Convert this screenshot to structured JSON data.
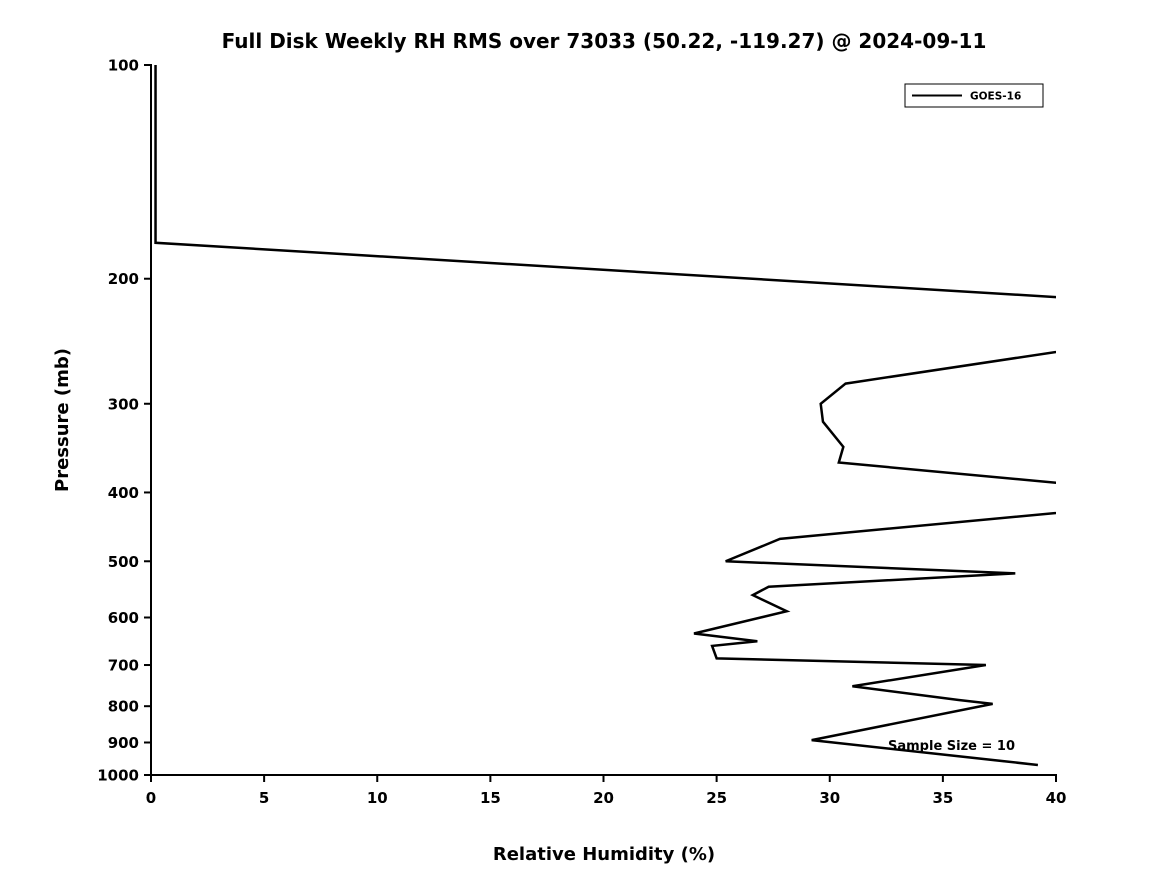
{
  "chart_data": {
    "type": "line",
    "title": "Full Disk Weekly RH RMS over 73033 (50.22, -119.27) @ 2024-09-11",
    "xlabel": "Relative Humidity (%)",
    "ylabel": "Pressure (mb)",
    "xlim": [
      0,
      40
    ],
    "ylim": [
      1000,
      100
    ],
    "y_scale": "log",
    "x_ticks": [
      0,
      5,
      10,
      15,
      20,
      25,
      30,
      35,
      40
    ],
    "y_ticks": [
      100,
      200,
      300,
      400,
      500,
      600,
      700,
      800,
      900,
      1000
    ],
    "grid": false,
    "legend_position": "upper right",
    "annotation": "Sample Size = 10",
    "line_color": "#000000",
    "series": [
      {
        "name": "GOES-16",
        "color": "#000000",
        "points_rh_pressure": [
          [
            0.2,
            100
          ],
          [
            0.2,
            178
          ],
          [
            45,
            217
          ],
          [
            45,
            240
          ],
          [
            30.7,
            281
          ],
          [
            29.6,
            300
          ],
          [
            29.7,
            318
          ],
          [
            30.6,
            345
          ],
          [
            30.4,
            363
          ],
          [
            45,
            401
          ],
          [
            45,
            413
          ],
          [
            27.8,
            465
          ],
          [
            25.4,
            500
          ],
          [
            38.2,
            520
          ],
          [
            27.3,
            543
          ],
          [
            26.6,
            558
          ],
          [
            28.1,
            588
          ],
          [
            24.0,
            632
          ],
          [
            26.8,
            648
          ],
          [
            24.8,
            658
          ],
          [
            25.0,
            685
          ],
          [
            36.9,
            700
          ],
          [
            31.0,
            750
          ],
          [
            35.7,
            784
          ],
          [
            37.2,
            794
          ],
          [
            29.2,
            893
          ],
          [
            39.2,
            968
          ]
        ]
      }
    ]
  }
}
